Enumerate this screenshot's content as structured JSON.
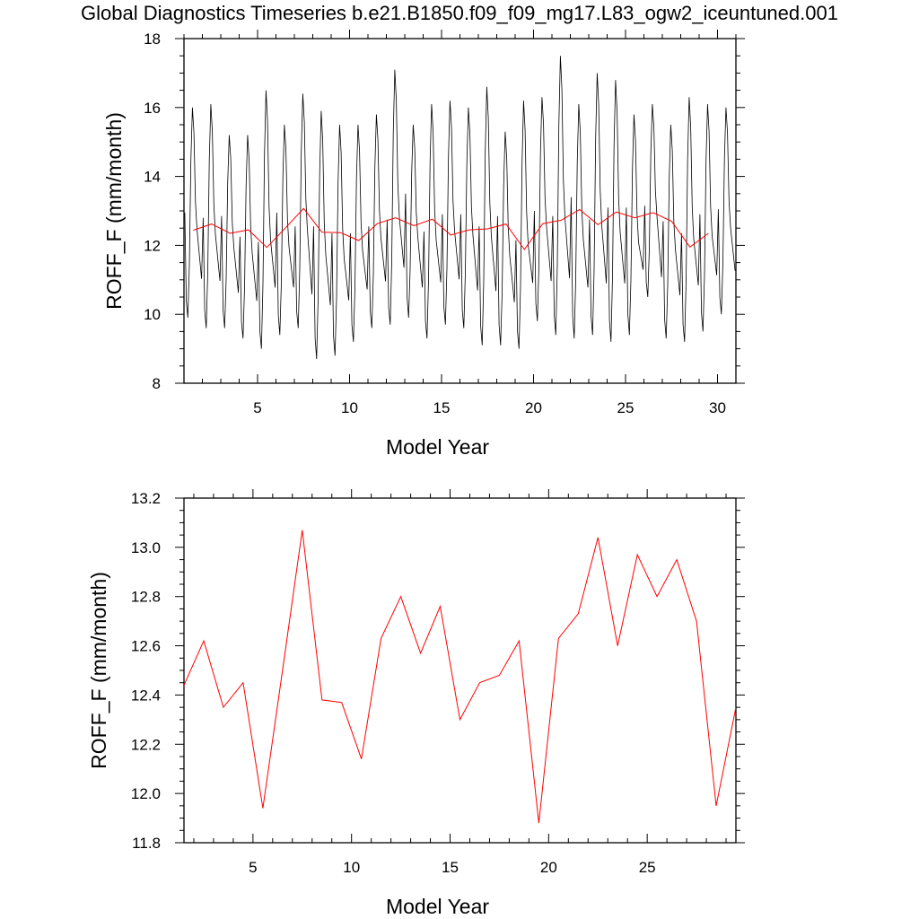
{
  "title": "Global Diagnostics Timeseries b.e21.B1850.f09_f09_mg17.L83_ogw2_iceuntuned.001",
  "colors": {
    "monthly": "#000000",
    "annual": "#ff0000",
    "frame": "#000000"
  },
  "chart_data": [
    {
      "type": "line",
      "xlabel": "Model Year",
      "ylabel": "ROFF_F (mm/month)",
      "xlim": [
        1,
        31
      ],
      "ylim": [
        8,
        18
      ],
      "xticks": [
        5,
        10,
        15,
        20,
        25,
        30
      ],
      "yticks": [
        8,
        10,
        12,
        14,
        16,
        18
      ],
      "grid": false,
      "series": [
        {
          "role": "monthly",
          "peaks": [
            16.0,
            16.1,
            15.2,
            15.2,
            16.5,
            15.5,
            16.4,
            15.9,
            15.5,
            15.5,
            15.8,
            17.1,
            15.5,
            16.1,
            16.2,
            16.0,
            16.6,
            15.3,
            16.2,
            16.3,
            17.5,
            16.1,
            17.0,
            16.8,
            15.8,
            16.1,
            15.5,
            16.3,
            16.1,
            16.0
          ],
          "troughs": [
            9.9,
            9.6,
            9.6,
            9.3,
            9.0,
            9.4,
            9.6,
            8.7,
            8.8,
            9.2,
            9.6,
            9.7,
            9.9,
            9.3,
            9.7,
            9.6,
            9.1,
            9.1,
            9.0,
            9.8,
            9.4,
            9.3,
            9.4,
            9.2,
            9.4,
            10.5,
            9.3,
            9.2,
            9.5,
            10.0
          ]
        },
        {
          "role": "annual",
          "x": [
            1.5,
            2.5,
            3.5,
            4.5,
            5.5,
            6.5,
            7.5,
            8.5,
            9.5,
            10.5,
            11.5,
            12.5,
            13.5,
            14.5,
            15.5,
            16.5,
            17.5,
            18.5,
            19.5,
            20.5,
            21.5,
            22.5,
            23.5,
            24.5,
            25.5,
            26.5,
            27.5,
            28.5,
            29.5
          ],
          "values": [
            12.44,
            12.62,
            12.35,
            12.45,
            11.94,
            12.5,
            13.07,
            12.38,
            12.37,
            12.14,
            12.63,
            12.8,
            12.57,
            12.76,
            12.3,
            12.45,
            12.48,
            12.62,
            11.88,
            12.63,
            12.73,
            13.04,
            12.6,
            12.97,
            12.8,
            12.95,
            12.7,
            11.95,
            12.35
          ]
        }
      ]
    },
    {
      "type": "line",
      "xlabel": "Model Year",
      "ylabel": "ROFF_F (mm/month)",
      "xlim": [
        1.5,
        29.5
      ],
      "ylim": [
        11.8,
        13.2
      ],
      "xticks": [
        5,
        10,
        15,
        20,
        25
      ],
      "yticks": [
        11.8,
        12.0,
        12.2,
        12.4,
        12.6,
        12.8,
        13.0,
        13.2
      ],
      "grid": false,
      "series": [
        {
          "role": "annual",
          "x": [
            1.5,
            2.5,
            3.5,
            4.5,
            5.5,
            6.5,
            7.5,
            8.5,
            9.5,
            10.5,
            11.5,
            12.5,
            13.5,
            14.5,
            15.5,
            16.5,
            17.5,
            18.5,
            19.5,
            20.5,
            21.5,
            22.5,
            23.5,
            24.5,
            25.5,
            26.5,
            27.5,
            28.5,
            29.5
          ],
          "values": [
            12.44,
            12.62,
            12.35,
            12.45,
            11.94,
            12.5,
            13.07,
            12.38,
            12.37,
            12.14,
            12.63,
            12.8,
            12.57,
            12.76,
            12.3,
            12.45,
            12.48,
            12.62,
            11.88,
            12.63,
            12.73,
            13.04,
            12.6,
            12.97,
            12.8,
            12.95,
            12.7,
            11.95,
            12.35
          ]
        }
      ]
    }
  ]
}
